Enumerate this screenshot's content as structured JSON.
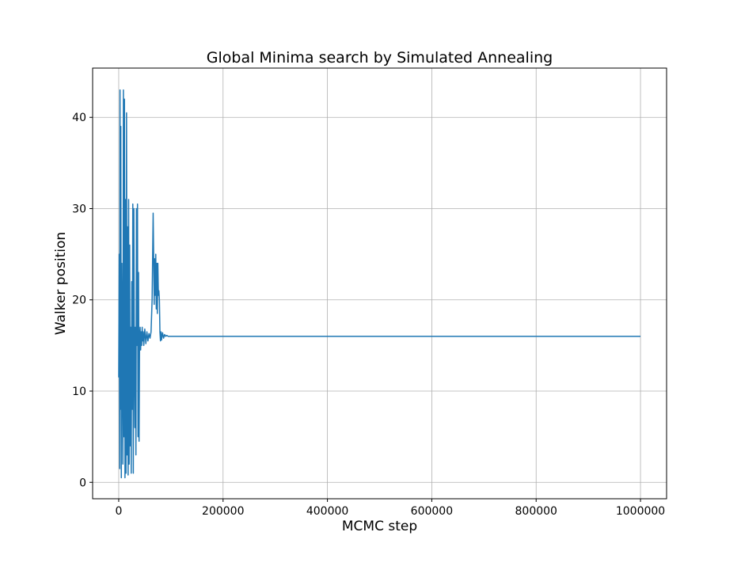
{
  "chart_data": {
    "type": "line",
    "title": "Global Minima search by Simulated Annealing",
    "xlabel": "MCMC step",
    "ylabel": "Walker position",
    "xlim": [
      -50000,
      1050000
    ],
    "ylim": [
      -1.8,
      45.4
    ],
    "xticks": [
      0,
      200000,
      400000,
      600000,
      800000,
      1000000
    ],
    "xtick_labels": [
      "0",
      "200000",
      "400000",
      "600000",
      "800000",
      "1000000"
    ],
    "yticks": [
      0,
      10,
      20,
      30,
      40
    ],
    "ytick_labels": [
      "0",
      "10",
      "20",
      "30",
      "40"
    ],
    "grid": true,
    "legend": "none",
    "colors": {
      "line": "#1f77b4",
      "grid": "#b0b0b0",
      "axes": "#000000"
    },
    "series": [
      {
        "x": [
          0,
          1000,
          2000,
          2500,
          3000,
          4000,
          5000,
          6000,
          7000,
          8000,
          9000,
          10000,
          11000,
          12000,
          13000,
          14000,
          15000,
          16000,
          17000,
          18000,
          19000,
          20000,
          21000,
          22000,
          23000,
          24000,
          25000,
          26000,
          27000,
          28000,
          29000,
          30000,
          31000,
          32000,
          33000,
          34000,
          35000,
          36000,
          37000,
          38000,
          39000,
          40000,
          41000,
          42000,
          43000,
          44000,
          45000,
          46000,
          47000,
          48000,
          50000,
          52000,
          54000,
          56000,
          58000,
          60000,
          62000,
          64000,
          66000,
          68000,
          69000,
          70000,
          71000,
          72000,
          73000,
          74000,
          75000,
          76000,
          77000,
          78000,
          79000,
          80000,
          81000,
          82000,
          84000,
          86000,
          88000,
          90000,
          92000,
          95000,
          100000,
          150000,
          300000,
          500000,
          700000,
          900000,
          1000000
        ],
        "y": [
          11.5,
          25,
          1.5,
          43,
          8,
          39,
          0.5,
          24,
          14,
          2,
          43,
          5,
          42,
          0.5,
          31,
          1,
          40.5,
          3,
          28,
          0.8,
          31,
          2,
          26,
          4,
          17,
          1,
          22,
          8,
          30.5,
          1,
          30,
          14,
          6,
          17,
          3,
          30,
          15,
          30.5,
          5,
          23,
          4.5,
          16,
          17,
          14.5,
          16.5,
          15,
          17,
          15.5,
          16.5,
          15,
          16.8,
          15.2,
          16.5,
          15.5,
          16.3,
          15.8,
          16.5,
          20,
          29.5,
          19.5,
          24.5,
          20.5,
          25,
          19,
          24,
          18.5,
          24,
          20.5,
          21,
          20,
          16.5,
          15.5,
          16.5,
          15.6,
          16.4,
          15.8,
          16.2,
          16.0,
          16.1,
          16.0,
          16.0,
          16.0,
          16.0,
          16.0,
          16.0,
          16.0,
          16.0
        ]
      }
    ]
  }
}
